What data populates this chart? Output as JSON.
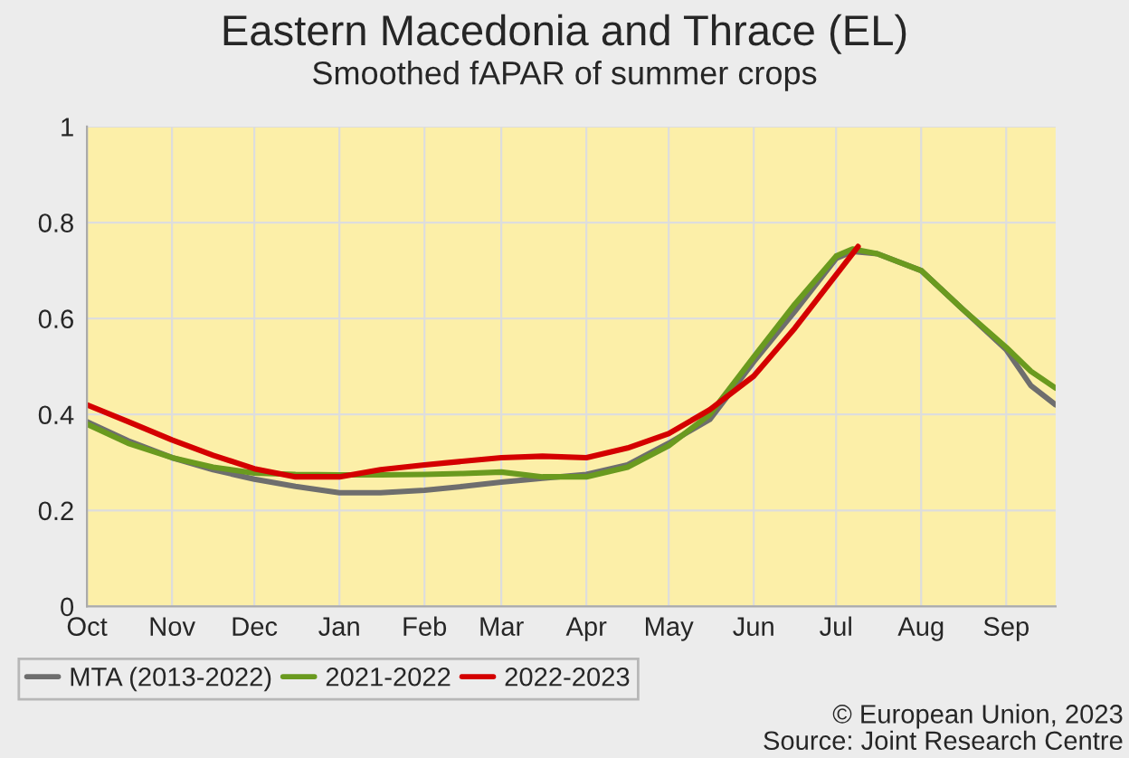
{
  "chart_data": {
    "type": "line",
    "title": "Eastern Macedonia and Thrace (EL)",
    "subtitle": "Smoothed fAPAR of summer crops",
    "x": [
      "2022-10-01",
      "2022-10-16",
      "2022-11-01",
      "2022-11-16",
      "2022-12-01",
      "2022-12-16",
      "2023-01-01",
      "2023-01-16",
      "2023-02-01",
      "2023-02-15",
      "2023-03-01",
      "2023-03-16",
      "2023-04-01",
      "2023-04-16",
      "2023-05-01",
      "2023-05-16",
      "2023-06-01",
      "2023-06-16",
      "2023-07-01",
      "2023-07-07",
      "2023-07-16",
      "2023-08-01",
      "2023-08-16",
      "2023-09-01",
      "2023-09-10",
      "2023-09-19"
    ],
    "series": [
      {
        "name": "MTA (2013-2022)",
        "color": "#6e6e6e",
        "values": [
          0.385,
          0.345,
          0.31,
          0.285,
          0.265,
          0.25,
          0.237,
          0.237,
          0.242,
          0.25,
          0.259,
          0.267,
          0.275,
          0.295,
          0.34,
          0.39,
          0.51,
          0.615,
          0.725,
          0.74,
          0.735,
          0.7,
          0.62,
          0.535,
          0.46,
          0.42
        ]
      },
      {
        "name": "2021-2022",
        "color": "#6a9a1f",
        "values": [
          0.38,
          0.34,
          0.31,
          0.29,
          0.278,
          0.275,
          0.274,
          0.274,
          0.275,
          0.277,
          0.28,
          0.27,
          0.27,
          0.29,
          0.335,
          0.4,
          0.52,
          0.63,
          0.73,
          0.745,
          0.735,
          0.7,
          0.62,
          0.54,
          0.49,
          0.455
        ]
      },
      {
        "name": "2022-2023",
        "color": "#d40000",
        "x": [
          "2022-10-01",
          "2022-10-16",
          "2022-11-01",
          "2022-11-16",
          "2022-12-01",
          "2022-12-16",
          "2023-01-01",
          "2023-01-16",
          "2023-02-01",
          "2023-03-01",
          "2023-03-16",
          "2023-04-01",
          "2023-04-16",
          "2023-05-01",
          "2023-05-16",
          "2023-06-01",
          "2023-06-16",
          "2023-07-09"
        ],
        "values": [
          0.42,
          0.385,
          0.347,
          0.315,
          0.287,
          0.27,
          0.27,
          0.285,
          0.295,
          0.31,
          0.313,
          0.31,
          0.33,
          0.36,
          0.41,
          0.48,
          0.58,
          0.75
        ]
      }
    ],
    "xlim": [
      "2022-10-01",
      "2023-09-19"
    ],
    "xticks": [
      {
        "value": "2022-10-01",
        "label": "Oct"
      },
      {
        "value": "2022-11-01",
        "label": "Nov"
      },
      {
        "value": "2022-12-01",
        "label": "Dec"
      },
      {
        "value": "2023-01-01",
        "label": "Jan"
      },
      {
        "value": "2023-02-01",
        "label": "Feb"
      },
      {
        "value": "2023-03-01",
        "label": "Mar"
      },
      {
        "value": "2023-04-01",
        "label": "Apr"
      },
      {
        "value": "2023-05-01",
        "label": "May"
      },
      {
        "value": "2023-06-01",
        "label": "Jun"
      },
      {
        "value": "2023-07-01",
        "label": "Jul"
      },
      {
        "value": "2023-08-01",
        "label": "Aug"
      },
      {
        "value": "2023-09-01",
        "label": "Sep"
      }
    ],
    "ylim": [
      0,
      1
    ],
    "yticks": [
      0,
      0.2,
      0.4,
      0.6,
      0.8,
      1
    ],
    "grid": true,
    "legend": "bottom",
    "marker": "none",
    "line_style": "solid",
    "annotations": [
      "© European Union, 2023",
      "Source: Joint Research Centre"
    ]
  }
}
